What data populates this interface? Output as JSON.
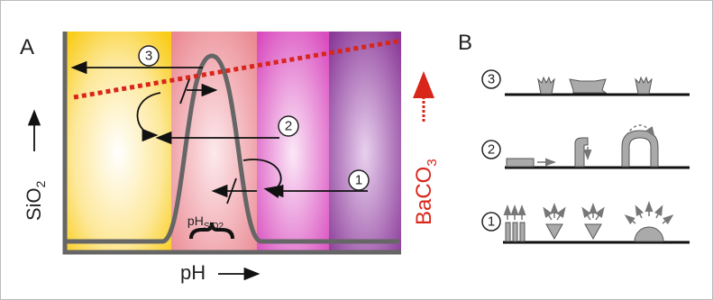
{
  "panels": [
    {
      "label": "A",
      "x_axis": "pH",
      "y_axis": {
        "main": "SiO",
        "sub": "2"
      },
      "right_axis": {
        "main": "BaCO",
        "sub": "3"
      },
      "region_label": {
        "main": "pH",
        "sub": "SiO2"
      },
      "steps": [
        "3",
        "2",
        "1"
      ]
    },
    {
      "label": "B",
      "steps": [
        "3",
        "2",
        "1"
      ]
    }
  ]
}
